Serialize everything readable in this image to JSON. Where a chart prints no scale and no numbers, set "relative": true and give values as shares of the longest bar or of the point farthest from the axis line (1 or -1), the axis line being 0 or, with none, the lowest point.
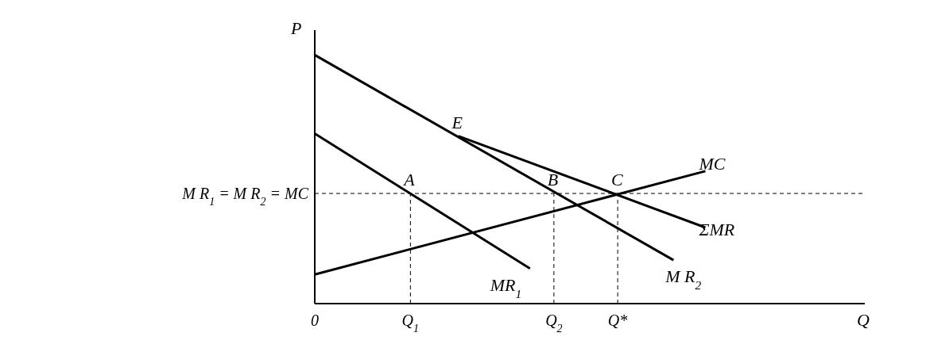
{
  "chart_data": {
    "type": "line",
    "relative": true,
    "xlabel": "Q",
    "ylabel": "P",
    "marker": "none",
    "line_style": "solid",
    "grid": false,
    "legend": false,
    "categories": [
      "0",
      null,
      null,
      null,
      null,
      null,
      null,
      null,
      null,
      null,
      null,
      null,
      "Q$_{1}$",
      null,
      null,
      null,
      null,
      null,
      null,
      null,
      null,
      null,
      null,
      null,
      null,
      null,
      null,
      null,
      null,
      null,
      "Q$_{2}$",
      null,
      null,
      null,
      null,
      null,
      null,
      null,
      "Q*",
      null,
      null,
      null,
      null,
      null,
      null,
      null,
      null,
      null,
      null,
      null,
      null,
      null,
      null,
      null,
      null,
      null,
      null,
      null,
      null,
      null,
      null,
      null,
      null,
      null,
      null,
      null,
      null,
      null,
      null,
      null
    ],
    "series": [
      {
        "name": "MR$_{1}$",
        "color": "#000000",
        "values": [
          0.684,
          null,
          null,
          null,
          null,
          null,
          null,
          null,
          null,
          null,
          null,
          null,
          null,
          null,
          null,
          null,
          null,
          null,
          null,
          null,
          null,
          null,
          null,
          null,
          null,
          null,
          null,
          0.141,
          null,
          null,
          null,
          null,
          null,
          null,
          null,
          null,
          null,
          null,
          null,
          null,
          null,
          null,
          null,
          null,
          null,
          null,
          null,
          null,
          null,
          null,
          null,
          null,
          null,
          null,
          null,
          null,
          null,
          null,
          null,
          null,
          null,
          null,
          null,
          null,
          null,
          null,
          null,
          null,
          null,
          null
        ]
      },
      {
        "name": "M R$_{2}$",
        "color": "#000000",
        "values": [
          1,
          null,
          null,
          null,
          null,
          null,
          null,
          null,
          null,
          null,
          null,
          null,
          null,
          null,
          null,
          null,
          null,
          null,
          null,
          null,
          null,
          null,
          null,
          null,
          null,
          null,
          null,
          null,
          null,
          null,
          null,
          null,
          null,
          null,
          null,
          null,
          null,
          null,
          null,
          null,
          null,
          null,
          null,
          null,
          null,
          0.175,
          null,
          null,
          null,
          null,
          null,
          null,
          null,
          null,
          null,
          null,
          null,
          null,
          null,
          null,
          null,
          null,
          null,
          null,
          null,
          null,
          null,
          null,
          null,
          null
        ]
      },
      {
        "name": "ΣMR",
        "color": "#000000",
        "values": [
          null,
          null,
          null,
          null,
          null,
          null,
          null,
          null,
          null,
          null,
          null,
          null,
          null,
          null,
          null,
          null,
          null,
          null,
          0.674,
          null,
          null,
          null,
          null,
          null,
          null,
          null,
          null,
          null,
          null,
          null,
          null,
          null,
          null,
          null,
          null,
          null,
          null,
          null,
          null,
          null,
          null,
          null,
          null,
          null,
          null,
          null,
          null,
          null,
          null,
          0.306,
          null,
          null,
          null,
          null,
          null,
          null,
          null,
          null,
          null,
          null,
          null,
          null,
          null,
          null,
          null,
          null,
          null,
          null,
          null,
          null
        ]
      },
      {
        "name": "MC",
        "color": "#000000",
        "values": [
          0.117,
          null,
          null,
          null,
          null,
          null,
          null,
          null,
          null,
          null,
          null,
          null,
          null,
          null,
          null,
          null,
          null,
          null,
          null,
          null,
          null,
          null,
          null,
          null,
          null,
          null,
          null,
          null,
          null,
          null,
          null,
          null,
          null,
          null,
          null,
          null,
          null,
          null,
          null,
          null,
          null,
          null,
          null,
          null,
          null,
          null,
          null,
          null,
          null,
          0.533,
          null,
          null,
          null,
          null,
          null,
          null,
          null,
          null,
          null,
          null,
          null,
          null,
          null,
          null,
          null,
          null,
          null,
          null,
          null,
          null
        ]
      }
    ],
    "ref_lines": [
      {
        "axis": "y",
        "value": 0.443,
        "label": "M R$_{1}$ = M R$_{2}$ = MC",
        "line_style": "dashed",
        "color": "#000000"
      },
      {
        "axis": "x",
        "value": "Q$_{1}$",
        "line_style": "dashed",
        "color": "#000000"
      },
      {
        "axis": "x",
        "value": "Q$_{2}$",
        "line_style": "dashed",
        "color": "#000000"
      },
      {
        "axis": "x",
        "value": "Q*",
        "line_style": "dashed",
        "color": "#000000"
      }
    ],
    "annotations": [
      {
        "text": "E",
        "y": 0.674
      },
      {
        "text": "A",
        "x": "Q$_{1}$",
        "y": 0.443
      },
      {
        "text": "B",
        "x": "Q$_{2}$",
        "y": 0.443
      },
      {
        "text": "C",
        "x": "Q*",
        "y": 0.443
      }
    ]
  }
}
